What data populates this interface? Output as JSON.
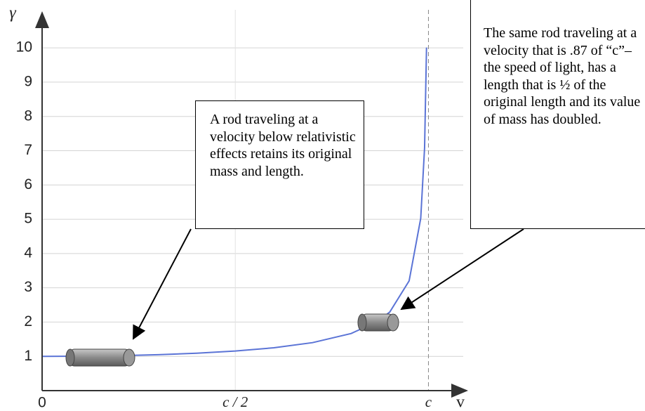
{
  "chart_data": {
    "type": "line",
    "xlabel": "v",
    "ylabel": "γ",
    "x": [
      0,
      0.1,
      0.2,
      0.3,
      0.4,
      0.5,
      0.6,
      0.7,
      0.8,
      0.87,
      0.9,
      0.95,
      0.98,
      0.99,
      0.995
    ],
    "series": [
      {
        "color": "#5b74d6",
        "values": [
          1,
          1.005,
          1.021,
          1.048,
          1.091,
          1.155,
          1.25,
          1.4,
          1.667,
          2.03,
          2.294,
          3.203,
          5.025,
          7.089,
          10.01
        ]
      }
    ],
    "xlim": [
      0,
      1.09
    ],
    "ylim": [
      0,
      10.7
    ],
    "xticks": [
      {
        "value": 0,
        "label": "0"
      },
      {
        "value": 0.5,
        "label": "c / 2"
      },
      {
        "value": 1,
        "label": "c"
      }
    ],
    "yticks": [
      1,
      2,
      3,
      4,
      5,
      6,
      7,
      8,
      9,
      10
    ],
    "grid": true,
    "annotations": [
      {
        "text": "A rod traveling at a velocity below relativistic effects retains its original mass and length."
      },
      {
        "text": "The same rod traveling at a velocity that is .87 of “c”– the speed of light, has a length that is ½ of the original length and its value of mass has doubled."
      }
    ]
  }
}
